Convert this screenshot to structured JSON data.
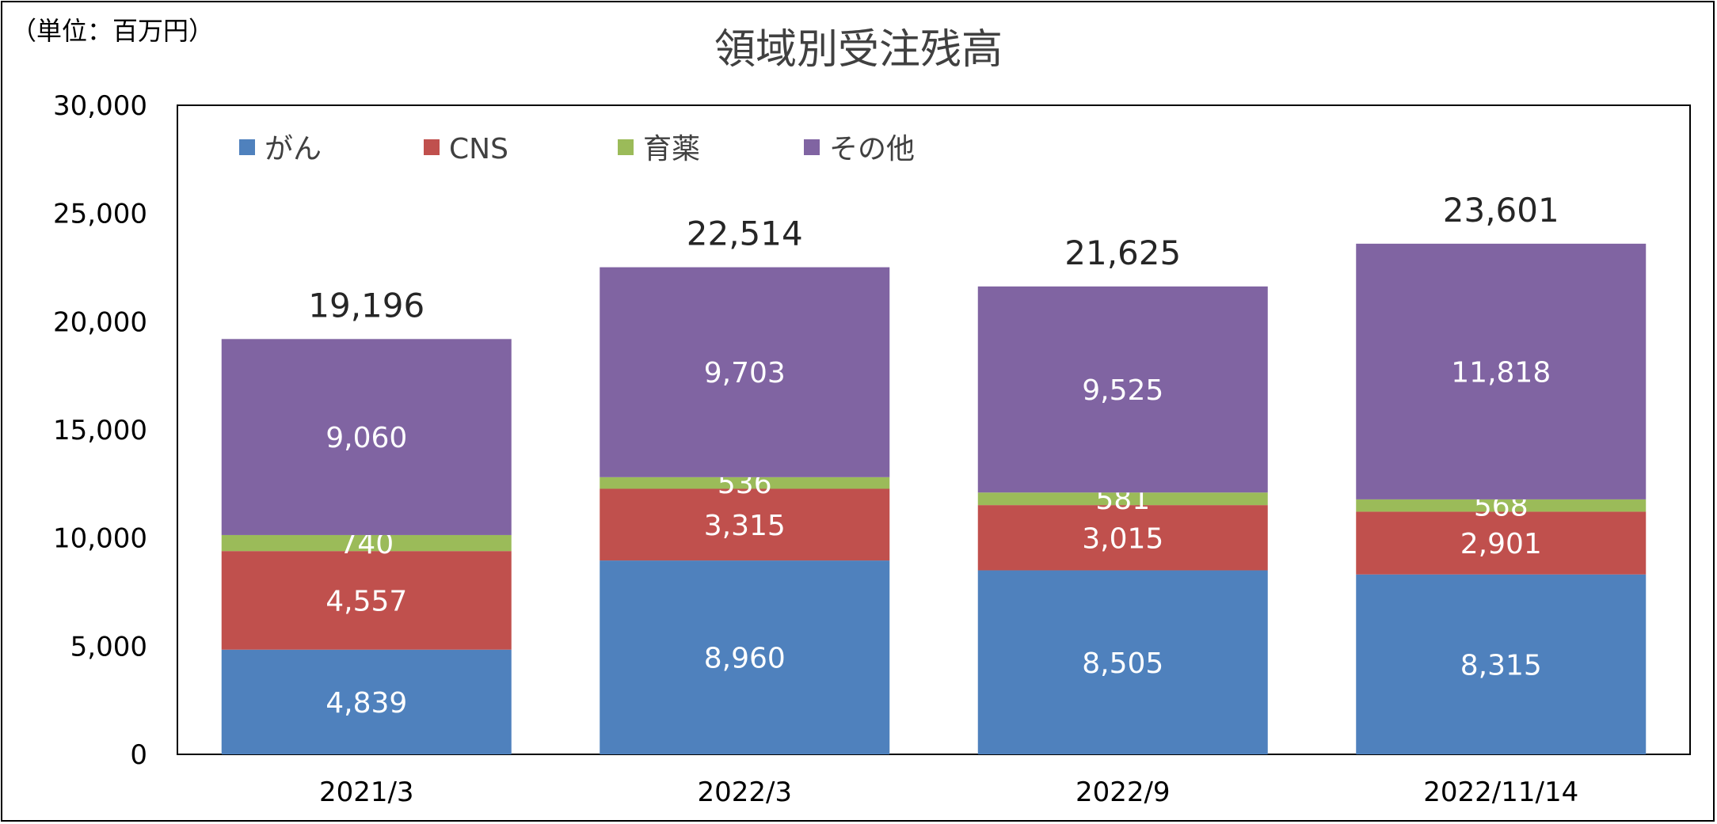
{
  "chart_data": {
    "type": "bar",
    "stacked": true,
    "title": "領域別受注残高",
    "unit_label": "（単位：百万円）",
    "categories": [
      "2021/3",
      "2022/3",
      "2022/9",
      "2022/11/14"
    ],
    "series": [
      {
        "name": "がん",
        "color": "#4f81bd",
        "values": [
          4839,
          8960,
          8505,
          8315
        ],
        "labels": [
          "4,839",
          "8,960",
          "8,505",
          "8,315"
        ]
      },
      {
        "name": "CNS",
        "color": "#c0504d",
        "values": [
          4557,
          3315,
          3015,
          2901
        ],
        "labels": [
          "4,557",
          "3,315",
          "3,015",
          "2,901"
        ]
      },
      {
        "name": "育薬",
        "color": "#9bbb59",
        "values": [
          740,
          536,
          581,
          568
        ],
        "labels": [
          "740",
          "536",
          "581",
          "568"
        ]
      },
      {
        "name": "その他",
        "color": "#8064a2",
        "values": [
          9060,
          9703,
          9525,
          11818
        ],
        "labels": [
          "9,060",
          "9,703",
          "9,525",
          "11,818"
        ]
      }
    ],
    "totals": [
      19196,
      22514,
      21625,
      23601
    ],
    "total_labels": [
      "19,196",
      "22,514",
      "21,625",
      "23,601"
    ],
    "ylim": [
      0,
      30000
    ],
    "yticks": [
      0,
      5000,
      10000,
      15000,
      20000,
      25000,
      30000
    ],
    "ytick_labels": [
      "0",
      "5,000",
      "10,000",
      "15,000",
      "20,000",
      "25,000",
      "30,000"
    ],
    "legend_position": "top-left",
    "grid": false
  }
}
